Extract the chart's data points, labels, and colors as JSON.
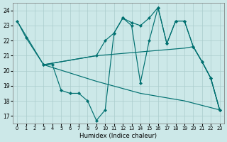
{
  "xlabel": "Humidex (Indice chaleur)",
  "background_color": "#cce8e8",
  "grid_color": "#aacccc",
  "line_color": "#007070",
  "xlim": [
    -0.5,
    23.5
  ],
  "ylim": [
    16.5,
    24.5
  ],
  "xticks": [
    0,
    1,
    2,
    3,
    4,
    5,
    6,
    7,
    8,
    9,
    10,
    11,
    12,
    13,
    14,
    15,
    16,
    17,
    18,
    19,
    20,
    21,
    22,
    23
  ],
  "yticks": [
    17,
    18,
    19,
    20,
    21,
    22,
    23,
    24
  ],
  "line1": {
    "x": [
      0,
      1,
      3,
      4,
      5,
      6,
      7,
      8,
      9,
      10,
      11,
      12,
      13,
      14,
      15,
      16,
      17,
      18,
      19,
      20,
      21,
      22,
      23
    ],
    "y": [
      23.3,
      22.2,
      20.4,
      20.4,
      18.7,
      18.5,
      18.5,
      18.0,
      16.7,
      17.4,
      22.5,
      23.5,
      23.0,
      19.2,
      22.0,
      24.2,
      21.8,
      23.3,
      23.3,
      21.6,
      20.6,
      19.5,
      17.4
    ],
    "marker": true
  },
  "line2": {
    "x": [
      3,
      9,
      10,
      11,
      12,
      13,
      14,
      15,
      16,
      17,
      18,
      19,
      20,
      21,
      22,
      23
    ],
    "y": [
      20.4,
      21.0,
      22.0,
      22.5,
      23.5,
      23.2,
      23.0,
      23.5,
      24.2,
      21.8,
      23.3,
      23.3,
      21.6,
      20.6,
      19.5,
      17.4
    ],
    "marker": true
  },
  "line3": {
    "x": [
      0,
      3,
      9,
      14,
      19,
      23
    ],
    "y": [
      23.3,
      20.4,
      19.3,
      18.5,
      18.0,
      17.4
    ],
    "marker": false
  },
  "line4": {
    "x": [
      3,
      9,
      19,
      20,
      21,
      22,
      23
    ],
    "y": [
      20.4,
      21.0,
      21.5,
      21.6,
      20.6,
      19.5,
      17.4
    ],
    "marker": false
  }
}
